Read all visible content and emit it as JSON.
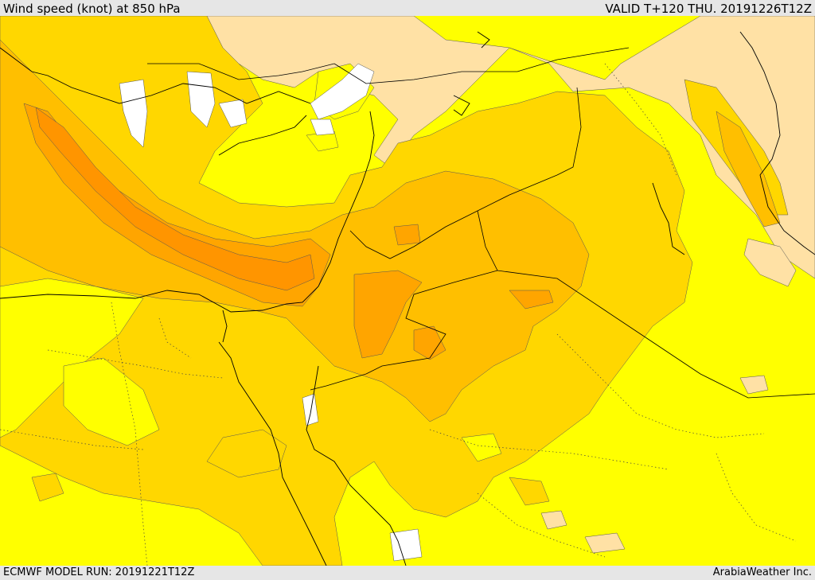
{
  "header": {
    "title": "Wind speed (knot) at 850 hPa",
    "valid": "VALID T+120 THU. 20191226T12Z"
  },
  "footer": {
    "model_run": "ECMWF MODEL RUN: 20191221T12Z",
    "credit": "ArabiaWeather Inc."
  },
  "colors": {
    "speed_lowest": "#ffffff",
    "speed_low": "#ffff00",
    "speed_light": "#ffe1a5",
    "speed_moderate": "#ffd700",
    "speed_strong": "#ffbf00",
    "speed_stronger": "#ffa500",
    "speed_strongest": "#ff9500",
    "border_line": "#000000",
    "frame_background": "#e6e6e6"
  }
}
